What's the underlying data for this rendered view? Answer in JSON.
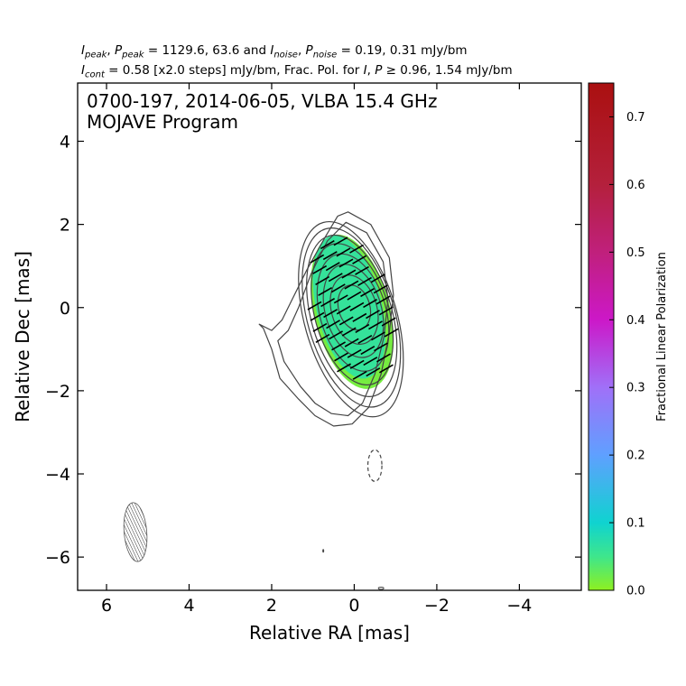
{
  "header": {
    "line1_parts": [
      {
        "t": "I",
        "i": true
      },
      {
        "t": "peak",
        "sub": true,
        "i": true
      },
      {
        "t": ", "
      },
      {
        "t": "P",
        "i": true
      },
      {
        "t": "peak",
        "sub": true,
        "i": true
      },
      {
        "t": " = 1129.6, 63.6 and "
      },
      {
        "t": "I",
        "i": true
      },
      {
        "t": "noise",
        "sub": true,
        "i": true
      },
      {
        "t": ", "
      },
      {
        "t": "P",
        "i": true
      },
      {
        "t": "noise",
        "sub": true,
        "i": true
      },
      {
        "t": " = 0.19, 0.31 mJy/bm"
      }
    ],
    "line2_parts": [
      {
        "t": "I",
        "i": true
      },
      {
        "t": "cont",
        "sub": true,
        "i": true
      },
      {
        "t": " = 0.58 [x2.0 steps] mJy/bm, Frac. Pol. for "
      },
      {
        "t": "I",
        "i": true
      },
      {
        "t": ", "
      },
      {
        "t": "P",
        "i": true
      },
      {
        "t": " ≥  0.96, 1.54 mJy/bm"
      }
    ]
  },
  "chart_data": {
    "type": "contour",
    "title_lines": [
      "0700-197, 2014-06-05, VLBA 15.4 GHz",
      "MOJAVE Program"
    ],
    "xlabel": "Relative RA [mas]",
    "ylabel": "Relative Dec [mas]",
    "xlim": [
      6.7,
      -5.5
    ],
    "ylim": [
      -6.8,
      5.4
    ],
    "xticks": [
      6,
      4,
      2,
      0,
      -2,
      -4
    ],
    "xtick_labels": [
      "6",
      "4",
      "2",
      "0",
      "−2",
      "−4"
    ],
    "yticks": [
      4,
      2,
      0,
      -2,
      -4,
      -6
    ],
    "ytick_labels": [
      "4",
      "2",
      "0",
      "−2",
      "−4",
      "−6"
    ],
    "core": {
      "ra": 0.0,
      "dec": 0.0,
      "pa_deg": -16
    },
    "contours": [
      {
        "level": 1,
        "a": 0.55,
        "b": 0.38,
        "dx": 0.0,
        "dy": 0.0
      },
      {
        "level": 2,
        "a": 0.85,
        "b": 0.55,
        "dx": 0.0,
        "dy": -0.05
      },
      {
        "level": 3,
        "a": 1.15,
        "b": 0.68,
        "dx": 0.02,
        "dy": -0.08
      },
      {
        "level": 4,
        "a": 1.45,
        "b": 0.8,
        "dx": 0.03,
        "dy": -0.12
      },
      {
        "level": 5,
        "a": 1.75,
        "b": 0.9,
        "dx": 0.05,
        "dy": -0.16
      },
      {
        "level": 6,
        "a": 2.0,
        "b": 0.98,
        "dx": 0.06,
        "dy": -0.2
      },
      {
        "level": 7,
        "a": 2.22,
        "b": 1.06,
        "dx": 0.07,
        "dy": -0.24
      },
      {
        "level": 8,
        "a": 2.42,
        "b": 1.12,
        "dx": 0.08,
        "dy": -0.28
      }
    ],
    "outer_contours": [
      [
        [
          0.15,
          2.3
        ],
        [
          -0.4,
          2.0
        ],
        [
          -0.85,
          1.2
        ],
        [
          -0.95,
          0.3
        ],
        [
          -0.85,
          -0.6
        ],
        [
          -0.65,
          -1.6
        ],
        [
          -0.35,
          -2.4
        ],
        [
          0.05,
          -2.8
        ],
        [
          0.5,
          -2.85
        ],
        [
          0.95,
          -2.6
        ],
        [
          1.35,
          -2.2
        ],
        [
          1.8,
          -1.7
        ],
        [
          2.0,
          -1.0
        ],
        [
          2.2,
          -0.5
        ],
        [
          2.3,
          -0.4
        ],
        [
          2.0,
          -0.55
        ],
        [
          1.75,
          -0.3
        ],
        [
          1.5,
          0.2
        ],
        [
          1.15,
          0.9
        ],
        [
          0.7,
          1.7
        ],
        [
          0.4,
          2.2
        ],
        [
          0.15,
          2.3
        ]
      ],
      [
        [
          0.2,
          2.05
        ],
        [
          -0.3,
          1.8
        ],
        [
          -0.7,
          1.1
        ],
        [
          -0.82,
          0.2
        ],
        [
          -0.72,
          -0.7
        ],
        [
          -0.5,
          -1.6
        ],
        [
          -0.2,
          -2.3
        ],
        [
          0.15,
          -2.6
        ],
        [
          0.55,
          -2.55
        ],
        [
          0.95,
          -2.3
        ],
        [
          1.3,
          -1.9
        ],
        [
          1.7,
          -1.3
        ],
        [
          1.85,
          -0.8
        ],
        [
          1.6,
          -0.55
        ],
        [
          1.35,
          0.0
        ],
        [
          1.05,
          0.8
        ],
        [
          0.65,
          1.6
        ],
        [
          0.2,
          2.05
        ]
      ]
    ],
    "pol_region": {
      "ra": 0.05,
      "dec": -0.1,
      "a": 1.9,
      "b": 0.92,
      "pa_deg": -14,
      "frac_pol_typical": 0.06
    },
    "evpa_sticks": {
      "pa_deg": 60,
      "length_mas": 0.38
    },
    "negative_contour": {
      "ra": -0.5,
      "dec": -3.8,
      "a": 0.38,
      "b": 0.17
    },
    "beam": {
      "ra": 5.3,
      "dec": -5.4,
      "major_mas": 1.42,
      "minor_mas": 0.55,
      "pa_deg": -5
    },
    "colorbar": {
      "label": "Fractional Linear Polarization",
      "range": [
        0.0,
        0.75
      ],
      "ticks": [
        0.0,
        0.1,
        0.2,
        0.3,
        0.4,
        0.5,
        0.6,
        0.7
      ],
      "tick_labels": [
        "0.0",
        "0.1",
        "0.2",
        "0.3",
        "0.4",
        "0.5",
        "0.6",
        "0.7"
      ],
      "stops": [
        {
          "v": 0.0,
          "color": "#8ef020"
        },
        {
          "v": 0.05,
          "color": "#3ee68c"
        },
        {
          "v": 0.1,
          "color": "#0fd3d0"
        },
        {
          "v": 0.2,
          "color": "#5fa0ff"
        },
        {
          "v": 0.3,
          "color": "#a070f8"
        },
        {
          "v": 0.4,
          "color": "#cc18c8"
        },
        {
          "v": 0.5,
          "color": "#c0207c"
        },
        {
          "v": 0.6,
          "color": "#b4203c"
        },
        {
          "v": 0.75,
          "color": "#aa1010"
        }
      ]
    }
  }
}
